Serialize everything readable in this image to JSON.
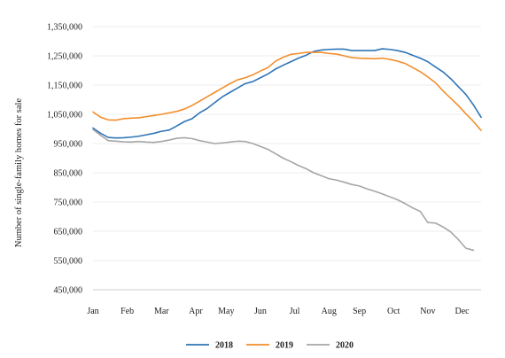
{
  "chart_data": {
    "type": "line",
    "title": "",
    "xlabel": "",
    "ylabel": "Number of single-family homes for sale",
    "ylim": [
      450000,
      1350000
    ],
    "y_ticks": [
      450000,
      550000,
      650000,
      750000,
      850000,
      950000,
      1050000,
      1150000,
      1250000,
      1350000
    ],
    "y_tick_labels": [
      "450,000",
      "550,000",
      "650,000",
      "750,000",
      "850,000",
      "950,000",
      "1,050,000",
      "1,150,000",
      "1,250,000",
      "1,350,000"
    ],
    "x_tick_labels": [
      "Jan",
      "Feb",
      "Mar",
      "Apr",
      "May",
      "Jun",
      "Jul",
      "Aug",
      "Sep",
      "Oct",
      "Nov",
      "Dec"
    ],
    "x_unit": "week",
    "x_range": [
      1,
      52
    ],
    "x_tick_positions": [
      1,
      5.5,
      10,
      14.5,
      18.5,
      23,
      27.5,
      32,
      36,
      40.5,
      45,
      49.5
    ],
    "grid": "horizontal",
    "legend_position": "bottom",
    "series": [
      {
        "name": "2018",
        "color": "#2e75b6",
        "x": [
          1,
          2,
          3,
          4,
          5,
          6,
          7,
          8,
          9,
          10,
          11,
          12,
          13,
          14,
          15,
          16,
          17,
          18,
          19,
          20,
          21,
          22,
          23,
          24,
          25,
          26,
          27,
          28,
          29,
          30,
          31,
          32,
          33,
          34,
          35,
          36,
          37,
          38,
          39,
          40,
          41,
          42,
          43,
          44,
          45,
          46,
          47,
          48,
          49,
          50,
          51,
          52
        ],
        "values": [
          1003000,
          985000,
          971000,
          969000,
          970000,
          972000,
          975000,
          980000,
          985000,
          992000,
          996000,
          1010000,
          1025000,
          1035000,
          1055000,
          1070000,
          1090000,
          1110000,
          1125000,
          1140000,
          1155000,
          1162000,
          1175000,
          1188000,
          1205000,
          1218000,
          1230000,
          1242000,
          1252000,
          1265000,
          1270000,
          1272000,
          1273000,
          1273000,
          1268000,
          1268000,
          1268000,
          1268000,
          1274000,
          1272000,
          1268000,
          1262000,
          1252000,
          1242000,
          1230000,
          1212000,
          1195000,
          1172000,
          1145000,
          1118000,
          1082000,
          1040000
        ]
      },
      {
        "name": "2019",
        "color": "#f28e2b",
        "x": [
          1,
          2,
          3,
          4,
          5,
          6,
          7,
          8,
          9,
          10,
          11,
          12,
          13,
          14,
          15,
          16,
          17,
          18,
          19,
          20,
          21,
          22,
          23,
          24,
          25,
          26,
          27,
          28,
          29,
          30,
          31,
          32,
          33,
          34,
          35,
          36,
          37,
          38,
          39,
          40,
          41,
          42,
          43,
          44,
          45,
          46,
          47,
          48,
          49,
          50,
          51,
          52
        ],
        "values": [
          1058000,
          1040000,
          1031000,
          1030000,
          1035000,
          1037000,
          1038000,
          1042000,
          1046000,
          1050000,
          1055000,
          1060000,
          1068000,
          1080000,
          1095000,
          1110000,
          1125000,
          1140000,
          1155000,
          1168000,
          1175000,
          1185000,
          1198000,
          1210000,
          1232000,
          1245000,
          1255000,
          1258000,
          1262000,
          1262000,
          1262000,
          1258000,
          1256000,
          1250000,
          1244000,
          1242000,
          1241000,
          1240000,
          1242000,
          1238000,
          1232000,
          1224000,
          1210000,
          1196000,
          1178000,
          1158000,
          1130000,
          1105000,
          1080000,
          1052000,
          1025000,
          995000
        ]
      },
      {
        "name": "2020",
        "color": "#a6a6a6",
        "x": [
          1,
          2,
          3,
          4,
          5,
          6,
          7,
          8,
          9,
          10,
          11,
          12,
          13,
          14,
          15,
          16,
          17,
          18,
          19,
          20,
          21,
          22,
          23,
          24,
          25,
          26,
          27,
          28,
          29,
          30,
          31,
          32,
          33,
          34,
          35,
          36,
          37,
          38,
          39,
          40,
          41,
          42,
          43,
          44,
          45,
          46,
          47,
          48,
          49,
          50,
          51
        ],
        "values": [
          998000,
          978000,
          960000,
          958000,
          956000,
          955000,
          957000,
          955000,
          954000,
          957000,
          962000,
          968000,
          970000,
          967000,
          960000,
          955000,
          950000,
          952000,
          955000,
          958000,
          957000,
          950000,
          940000,
          930000,
          915000,
          900000,
          888000,
          875000,
          864000,
          850000,
          840000,
          830000,
          825000,
          818000,
          810000,
          805000,
          795000,
          787000,
          778000,
          768000,
          758000,
          745000,
          730000,
          718000,
          680000,
          678000,
          665000,
          648000,
          622000,
          592000,
          585000
        ]
      }
    ]
  }
}
